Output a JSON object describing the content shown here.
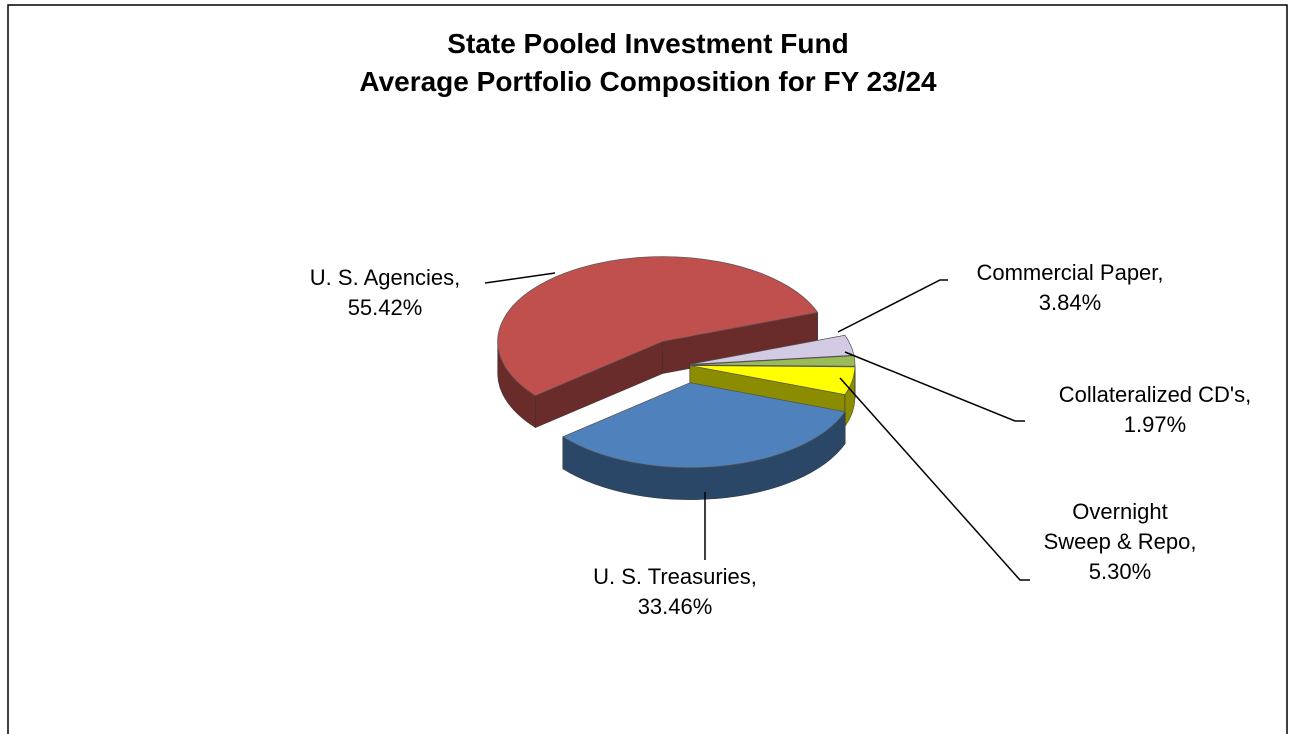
{
  "chart_data": {
    "type": "pie3d",
    "title": "State Pooled Investment Fund",
    "subtitle": "Average Portfolio Composition for FY 23/24",
    "categories": [
      "Commercial Paper,",
      "Collateralized CD's,",
      "Overnight Sweep & Repo,",
      "U. S. Treasuries,",
      "U. S. Agencies,"
    ],
    "values": [
      3.84,
      1.97,
      5.3,
      33.46,
      55.42
    ],
    "value_labels": [
      "3.84%",
      "1.97%",
      "5.30%",
      "33.46%",
      "55.42%"
    ],
    "colors": [
      "#d3cbe3",
      "#9bbb59",
      "#ffff00",
      "#4f81bd",
      "#c0504d"
    ]
  }
}
